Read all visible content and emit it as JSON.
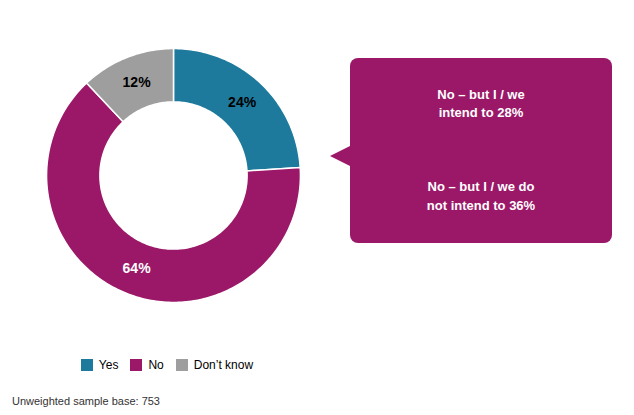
{
  "chart_data": {
    "type": "pie",
    "categories": [
      "Yes",
      "No",
      "Don’t know"
    ],
    "values": [
      24,
      64,
      12
    ],
    "colors": [
      "#1d7a9c",
      "#9b1868",
      "#9e9e9e"
    ],
    "data_labels": true,
    "value_labels": [
      "24%",
      "64%",
      "12%"
    ],
    "legend": "bottom",
    "annotations": [
      {
        "text": "No – but I / we\nintend to 28%",
        "color": "#9b1868"
      },
      {
        "text": "No – but I / we do\nnot intend to 36%",
        "color": "#9b1868"
      }
    ],
    "caption": "Unweighted sample base: 753"
  }
}
